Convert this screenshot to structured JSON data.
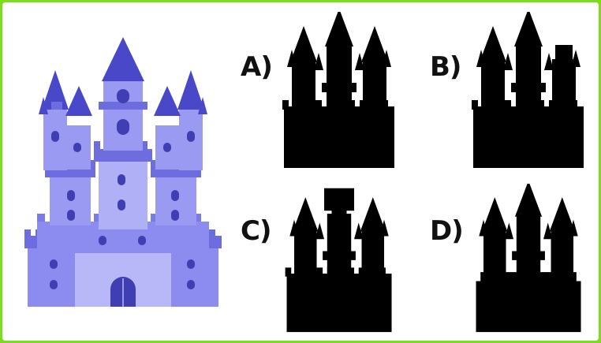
{
  "puzzle": {
    "options": [
      {
        "letter": "A)",
        "variant": "correct-silhouette"
      },
      {
        "letter": "B)",
        "variant": "square-top-right-tower"
      },
      {
        "letter": "C)",
        "variant": "square-top-center-tower"
      },
      {
        "letter": "D)",
        "variant": "no-small-turrets"
      }
    ],
    "colors": {
      "background_border": "#7ddc1f",
      "castle_main": "#8c8cf0",
      "castle_light": "#b8b8f8",
      "castle_dark": "#3f3fb3",
      "castle_roof": "#4848c8",
      "silhouette": "#000000"
    }
  }
}
